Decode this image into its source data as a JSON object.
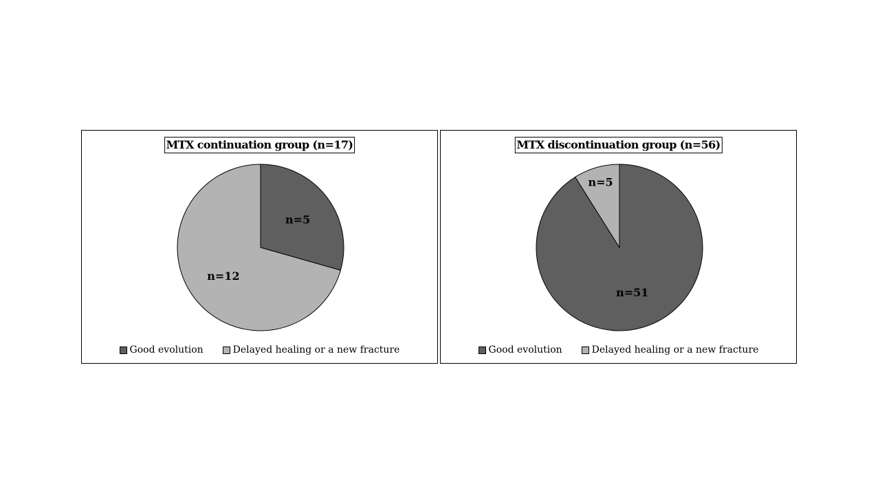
{
  "colors": {
    "good": "#5f5f5f",
    "delayed": "#b3b3b3",
    "stroke": "#000000"
  },
  "chart_data": [
    {
      "type": "pie",
      "title": "MTX continuation group (n=17)",
      "categories": [
        "Good evolution",
        "Delayed healing or a new fracture"
      ],
      "values": [
        5,
        12
      ],
      "data_labels": [
        "n=5",
        "n=12"
      ],
      "legend_position": "bottom"
    },
    {
      "type": "pie",
      "title": "MTX discontinuation group (n=56)",
      "categories": [
        "Good evolution",
        "Delayed healing or a new fracture"
      ],
      "values": [
        51,
        5
      ],
      "data_labels": [
        "n=51",
        "n=5"
      ],
      "legend_position": "bottom"
    }
  ]
}
